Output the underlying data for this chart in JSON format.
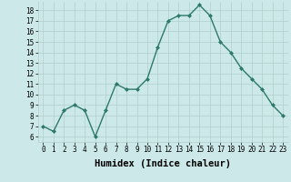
{
  "x": [
    0,
    1,
    2,
    3,
    4,
    5,
    6,
    7,
    8,
    9,
    10,
    11,
    12,
    13,
    14,
    15,
    16,
    17,
    18,
    19,
    20,
    21,
    22,
    23
  ],
  "y": [
    7,
    6.5,
    8.5,
    9,
    8.5,
    6,
    8.5,
    11,
    10.5,
    10.5,
    11.5,
    14.5,
    17,
    17.5,
    17.5,
    18.5,
    17.5,
    15,
    14,
    12.5,
    11.5,
    10.5,
    9,
    8
  ],
  "line_color": "#2d7a6a",
  "marker": "D",
  "marker_size": 2,
  "bg_color": "#cce8e8",
  "grid_color": "#b0d0cc",
  "xlabel": "Humidex (Indice chaleur)",
  "xlim": [
    -0.5,
    23.5
  ],
  "ylim": [
    5.5,
    18.8
  ],
  "yticks": [
    6,
    7,
    8,
    9,
    10,
    11,
    12,
    13,
    14,
    15,
    16,
    17,
    18
  ],
  "xticks": [
    0,
    1,
    2,
    3,
    4,
    5,
    6,
    7,
    8,
    9,
    10,
    11,
    12,
    13,
    14,
    15,
    16,
    17,
    18,
    19,
    20,
    21,
    22,
    23
  ],
  "xtick_labels": [
    "0",
    "1",
    "2",
    "3",
    "4",
    "5",
    "6",
    "7",
    "8",
    "9",
    "10",
    "11",
    "12",
    "13",
    "14",
    "15",
    "16",
    "17",
    "18",
    "19",
    "20",
    "21",
    "22",
    "23"
  ],
  "tick_fontsize": 5.5,
  "xlabel_fontsize": 7.5,
  "line_width": 1.0
}
